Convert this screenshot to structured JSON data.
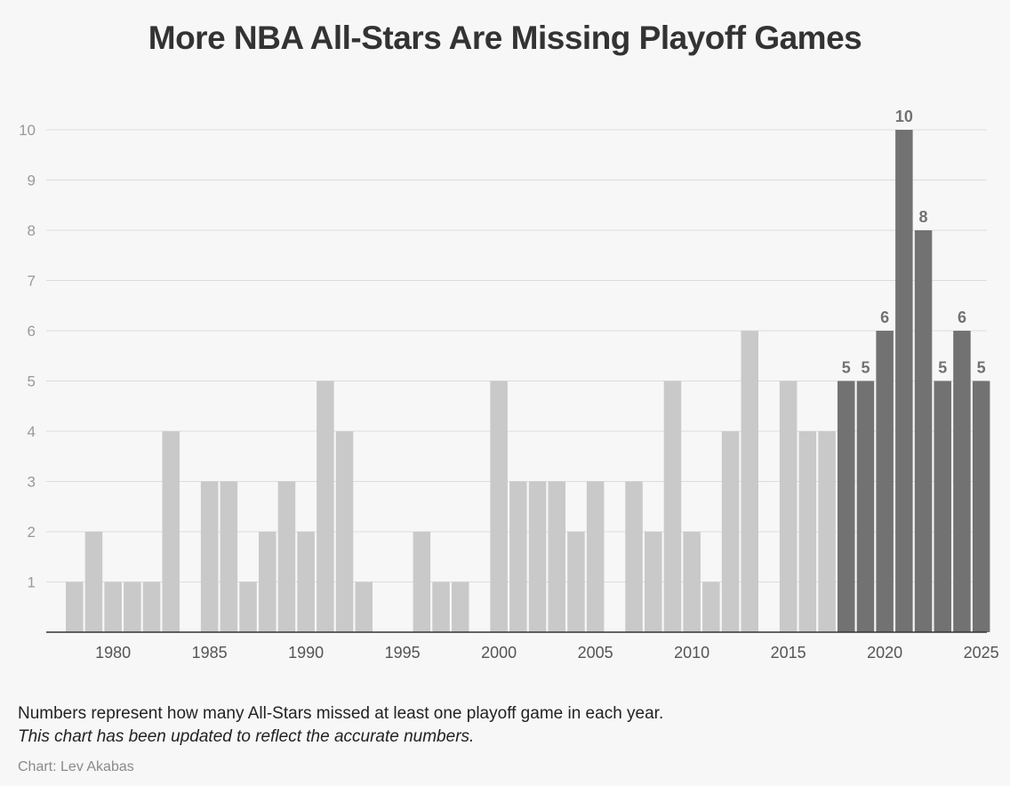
{
  "chart_data": {
    "type": "bar",
    "title": "More NBA All-Stars Are Missing Playoff Games",
    "x": [
      1978,
      1979,
      1980,
      1981,
      1982,
      1983,
      1984,
      1985,
      1986,
      1987,
      1988,
      1989,
      1990,
      1991,
      1992,
      1993,
      1994,
      1995,
      1996,
      1997,
      1998,
      1999,
      2000,
      2001,
      2002,
      2003,
      2004,
      2005,
      2006,
      2007,
      2008,
      2009,
      2010,
      2011,
      2012,
      2013,
      2014,
      2015,
      2016,
      2017,
      2018,
      2019,
      2020,
      2021,
      2022,
      2023,
      2024,
      2025
    ],
    "values": [
      1,
      2,
      1,
      1,
      1,
      4,
      0,
      3,
      3,
      1,
      2,
      3,
      2,
      5,
      4,
      1,
      0,
      0,
      2,
      1,
      1,
      0,
      5,
      3,
      3,
      3,
      2,
      3,
      0,
      3,
      2,
      5,
      2,
      1,
      4,
      6,
      0,
      5,
      4,
      4,
      5,
      5,
      6,
      10,
      8,
      5,
      6,
      5
    ],
    "highlight_from": 2018,
    "colors": {
      "base": "#c9c9c9",
      "highlight": "#727272",
      "label": "#727272"
    },
    "ylim": [
      0,
      10
    ],
    "yticks": [
      1,
      2,
      3,
      4,
      5,
      6,
      7,
      8,
      9,
      10
    ],
    "xticks": [
      1980,
      1985,
      1990,
      1995,
      2000,
      2005,
      2010,
      2015,
      2020,
      2025
    ],
    "xlabel": "",
    "ylabel": "",
    "grid": true
  },
  "notes": {
    "line1": "Numbers represent how many All-Stars missed at least one playoff game in each year.",
    "line2": "This chart has been updated to reflect the accurate numbers."
  },
  "credit": "Chart: Lev Akabas"
}
